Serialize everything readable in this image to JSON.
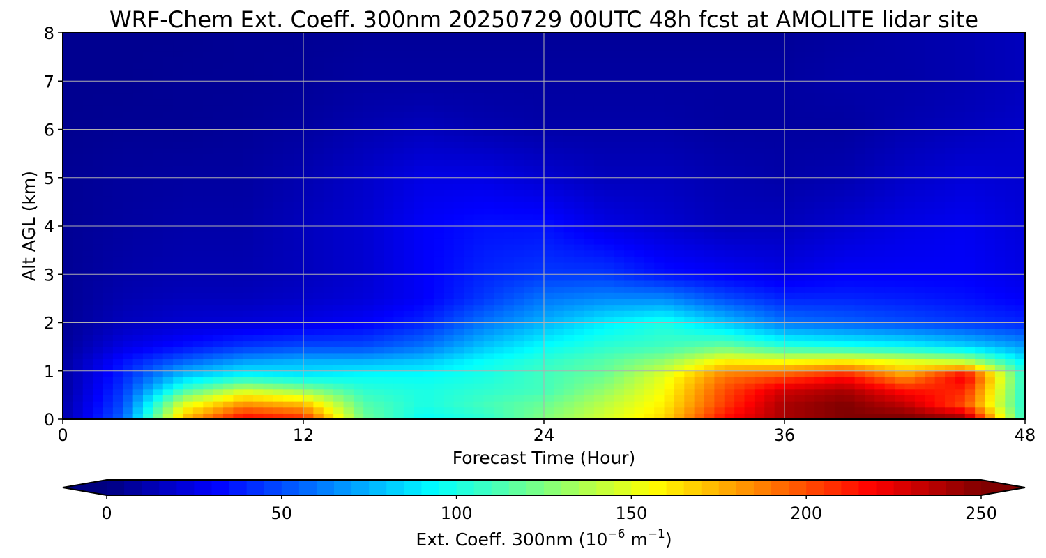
{
  "chart_data": {
    "type": "heatmap",
    "title": "WRF-Chem Ext. Coeff. 300nm  20250729 00UTC 48h fcst at AMOLITE lidar site",
    "xlabel": "Forecast Time (Hour)",
    "ylabel": "Alt AGL (km)",
    "xlim": [
      0,
      48
    ],
    "ylim": [
      0,
      8
    ],
    "x_ticks": [
      "0",
      "12",
      "24",
      "36",
      "48"
    ],
    "y_ticks": [
      "0",
      "1",
      "2",
      "3",
      "4",
      "5",
      "6",
      "7",
      "8"
    ],
    "grid": true,
    "colorbar": {
      "label_main": "Ext. Coeff. 300nm  (10",
      "label_exp1": "−6",
      "label_mid": " m",
      "label_exp2": "−1",
      "label_end": ")",
      "range": [
        0,
        250
      ],
      "extend": "both",
      "colormap": "jet",
      "ticks": [
        "0",
        "50",
        "100",
        "150",
        "200",
        "250"
      ]
    },
    "x_hours": [
      0,
      3,
      6,
      9,
      12,
      15,
      18,
      21,
      24,
      27,
      30,
      33,
      36,
      39,
      42,
      45,
      48
    ],
    "z_km": [
      0.05,
      0.3,
      0.6,
      0.9,
      1.2,
      1.5,
      2.0,
      2.5,
      3.0,
      4.0,
      5.0,
      6.0,
      7.0,
      8.0
    ],
    "values": [
      [
        10,
        55,
        170,
        215,
        205,
        120,
        95,
        105,
        125,
        145,
        165,
        215,
        240,
        250,
        250,
        240,
        100
      ],
      [
        10,
        50,
        150,
        185,
        175,
        115,
        100,
        110,
        120,
        140,
        160,
        205,
        240,
        250,
        235,
        200,
        100
      ],
      [
        8,
        45,
        110,
        145,
        130,
        105,
        100,
        105,
        110,
        130,
        155,
        200,
        230,
        240,
        215,
        210,
        100
      ],
      [
        8,
        40,
        80,
        95,
        90,
        95,
        95,
        100,
        110,
        120,
        150,
        190,
        200,
        215,
        180,
        225,
        100
      ],
      [
        8,
        35,
        55,
        70,
        75,
        75,
        80,
        95,
        105,
        115,
        130,
        160,
        155,
        160,
        150,
        140,
        90
      ],
      [
        6,
        25,
        35,
        45,
        50,
        50,
        60,
        80,
        95,
        105,
        110,
        120,
        105,
        100,
        95,
        85,
        70
      ],
      [
        5,
        15,
        20,
        22,
        25,
        30,
        40,
        60,
        75,
        90,
        100,
        80,
        60,
        55,
        50,
        45,
        40
      ],
      [
        5,
        12,
        15,
        15,
        18,
        22,
        30,
        45,
        60,
        65,
        65,
        50,
        40,
        40,
        38,
        35,
        30
      ],
      [
        5,
        10,
        12,
        12,
        15,
        20,
        30,
        40,
        45,
        45,
        35,
        30,
        25,
        30,
        30,
        30,
        25
      ],
      [
        5,
        8,
        10,
        10,
        15,
        20,
        30,
        35,
        35,
        25,
        20,
        15,
        15,
        20,
        25,
        28,
        22
      ],
      [
        5,
        7,
        8,
        8,
        12,
        18,
        25,
        25,
        20,
        15,
        15,
        12,
        10,
        12,
        18,
        22,
        20
      ],
      [
        4,
        5,
        5,
        6,
        8,
        12,
        15,
        12,
        10,
        10,
        10,
        8,
        8,
        8,
        12,
        15,
        18
      ],
      [
        4,
        4,
        5,
        5,
        6,
        8,
        8,
        8,
        8,
        8,
        8,
        8,
        8,
        10,
        10,
        12,
        15
      ],
      [
        4,
        4,
        4,
        5,
        5,
        6,
        6,
        6,
        6,
        6,
        6,
        6,
        6,
        8,
        10,
        12,
        15
      ]
    ]
  }
}
